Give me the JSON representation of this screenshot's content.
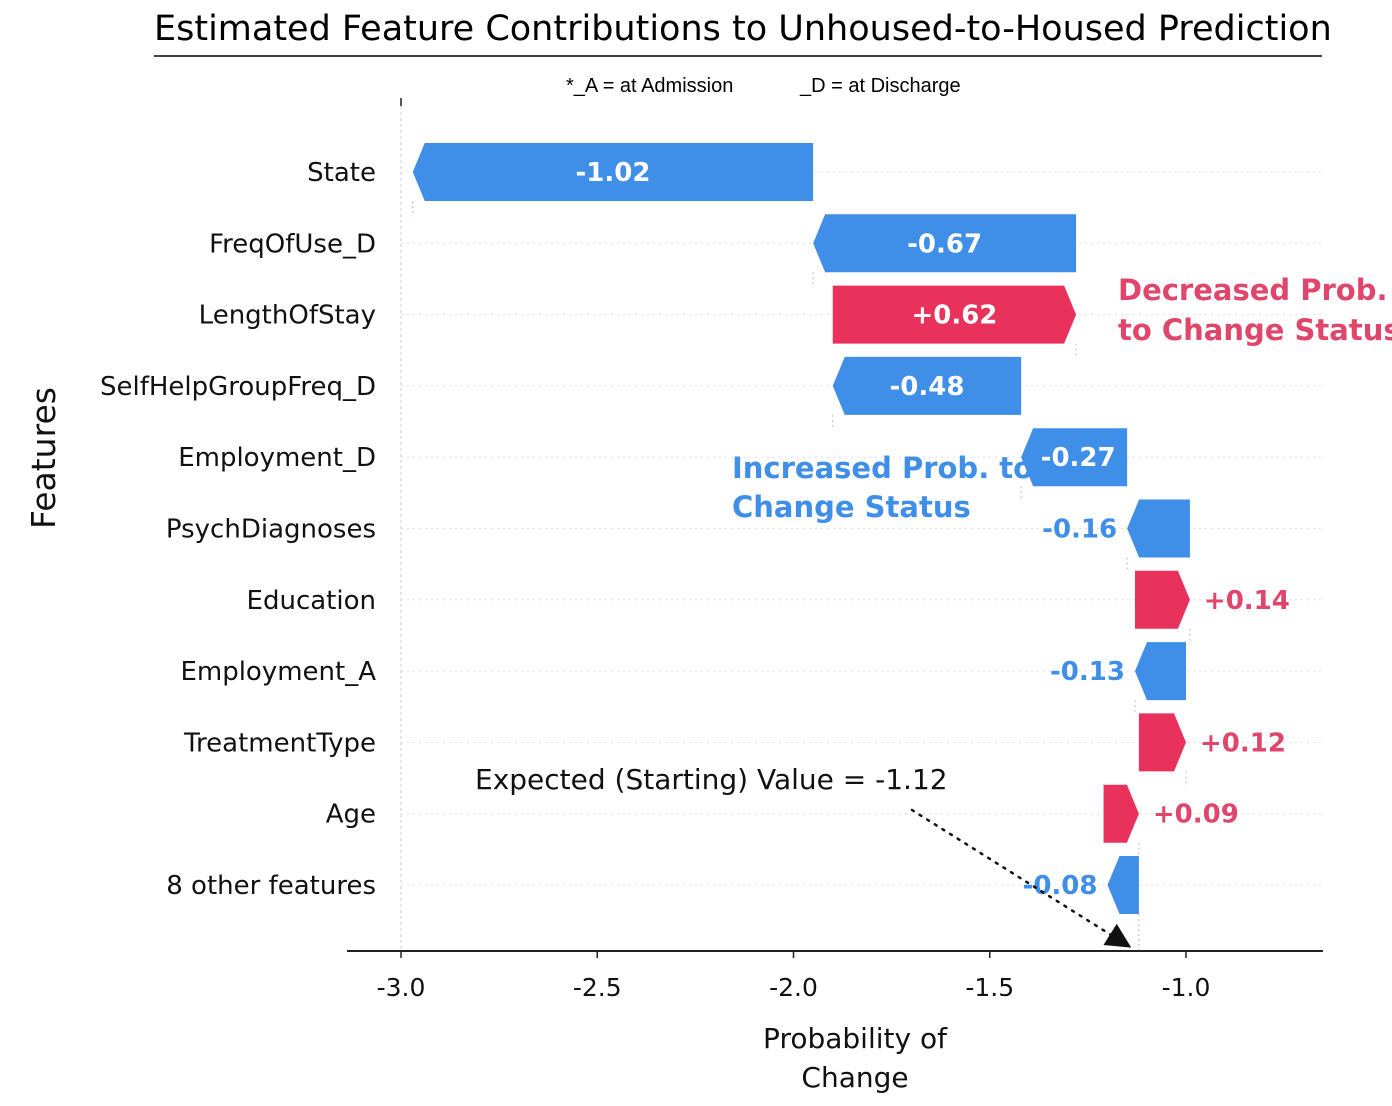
{
  "chart_data": {
    "type": "waterfall",
    "title": "Estimated Feature Contributions to Unhoused-to-Housed Prediction",
    "subtitle_left": "*_A = at Admission",
    "subtitle_right": "_D = at Discharge",
    "ylabel": "Features",
    "xlabel_line1": "Probability of",
    "xlabel_line2": "Change",
    "xlim": [
      -3.05,
      -0.65
    ],
    "xticks": [
      {
        "value": -3.0,
        "label": "-3.0"
      },
      {
        "value": -2.5,
        "label": "-2.5"
      },
      {
        "value": -2.0,
        "label": "-2.0"
      },
      {
        "value": -1.5,
        "label": "-1.5"
      },
      {
        "value": -1.0,
        "label": "-1.0"
      }
    ],
    "base_value": -1.12,
    "bars": [
      {
        "feature": "State",
        "start": -1.95,
        "end": -2.97,
        "label": "-1.02"
      },
      {
        "feature": "FreqOfUse_D",
        "start": -1.28,
        "end": -1.95,
        "label": "-0.67"
      },
      {
        "feature": "LengthOfStay",
        "start": -1.9,
        "end": -1.28,
        "label": "+0.62"
      },
      {
        "feature": "SelfHelpGroupFreq_D",
        "start": -1.42,
        "end": -1.9,
        "label": "-0.48"
      },
      {
        "feature": "Employment_D",
        "start": -1.15,
        "end": -1.42,
        "label": "-0.27"
      },
      {
        "feature": "PsychDiagnoses",
        "start": -0.99,
        "end": -1.15,
        "label": "-0.16"
      },
      {
        "feature": "Education",
        "start": -1.13,
        "end": -0.99,
        "label": "+0.14"
      },
      {
        "feature": "Employment_A",
        "start": -1.0,
        "end": -1.13,
        "label": "-0.13"
      },
      {
        "feature": "TreatmentType",
        "start": -1.12,
        "end": -1.0,
        "label": "+0.12"
      },
      {
        "feature": "Age",
        "start": -1.21,
        "end": -1.12,
        "label": "+0.09"
      },
      {
        "feature": "8 other features",
        "start": -1.12,
        "end": -1.2,
        "label": "-0.08"
      }
    ],
    "colors": {
      "negative": "#3f8ee8",
      "positive": "#e8325b"
    },
    "annotations": {
      "increased": [
        "Increased Prob. to",
        "Change Status"
      ],
      "decreased": [
        "Decreased Prob.",
        "to Change Status"
      ],
      "expected": "Expected (Starting) Value = -1.12"
    }
  }
}
